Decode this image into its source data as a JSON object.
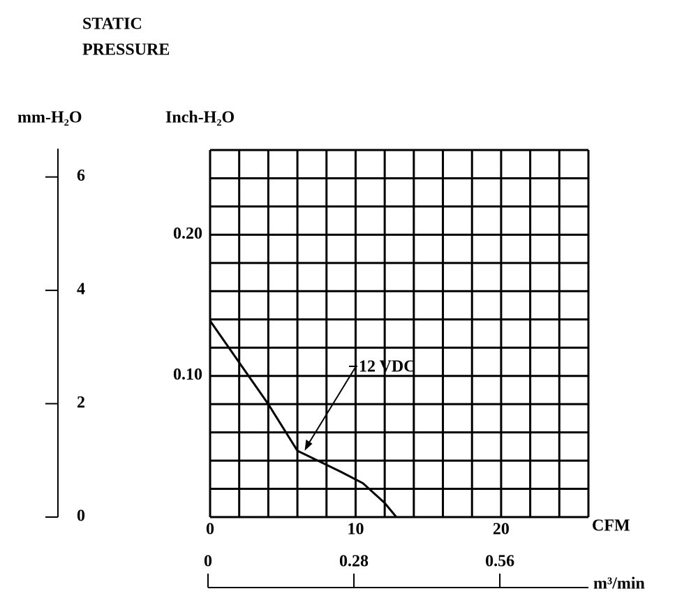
{
  "chart_data": {
    "type": "line",
    "title": [
      "STATIC",
      "PRESSURE"
    ],
    "ylabel": "Inch-H₂O",
    "y2label": "mm-H₂O",
    "xlabel": "CFM",
    "x2label": "m³/min",
    "x": [
      0,
      4,
      6,
      7.2,
      9,
      10.5,
      12,
      12.8
    ],
    "series": [
      {
        "name": "12 VDC",
        "color": "#000000",
        "values": [
          0.139,
          0.08,
          0.047,
          0.041,
          0.032,
          0.024,
          0.01,
          0
        ]
      }
    ],
    "annotation_point": [
      6.5,
      0.047
    ],
    "xlim": [
      0,
      26
    ],
    "ylim": [
      0,
      0.26
    ],
    "xticks": [
      0,
      10,
      20
    ],
    "yticks": [
      {
        "value": 0.1,
        "label": "0.10"
      },
      {
        "value": 0.2,
        "label": "0.20"
      }
    ],
    "x_gridlines": [
      0,
      2,
      4,
      6,
      8,
      10,
      12,
      14,
      16,
      18,
      20,
      22,
      24,
      26
    ],
    "y_gridlines": [
      0,
      0.02,
      0.04,
      0.06,
      0.08,
      0.1,
      0.12,
      0.14,
      0.16,
      0.18,
      0.2,
      0.22,
      0.24,
      0.26
    ],
    "y2lim": [
      0,
      6.5
    ],
    "y2ticks": [
      0,
      2,
      4,
      6
    ],
    "x2lim": [
      0,
      0.73
    ],
    "x2ticks": [
      0,
      0.28,
      0.56
    ],
    "grid": true
  }
}
